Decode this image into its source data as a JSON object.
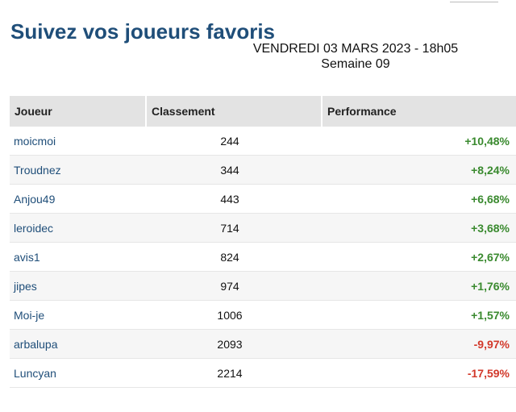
{
  "header": {
    "title": "Suivez vos joueurs favoris",
    "date_line": "VENDREDI 03 MARS 2023 - 18h05",
    "week_line": "Semaine 09"
  },
  "table": {
    "columns": [
      "Joueur",
      "Classement",
      "Performance"
    ],
    "rows": [
      {
        "player": "moicmoi",
        "rank": "244",
        "performance": "+10,48%",
        "trend": "up"
      },
      {
        "player": "Troudnez",
        "rank": "344",
        "performance": "+8,24%",
        "trend": "up"
      },
      {
        "player": "Anjou49",
        "rank": "443",
        "performance": "+6,68%",
        "trend": "up"
      },
      {
        "player": "leroidec",
        "rank": "714",
        "performance": "+3,68%",
        "trend": "up"
      },
      {
        "player": "avis1",
        "rank": "824",
        "performance": "+2,67%",
        "trend": "up"
      },
      {
        "player": "jipes",
        "rank": "974",
        "performance": "+1,76%",
        "trend": "up"
      },
      {
        "player": "Moi-je",
        "rank": "1006",
        "performance": "+1,57%",
        "trend": "up"
      },
      {
        "player": "arbalupa",
        "rank": "2093",
        "performance": "-9,97%",
        "trend": "down"
      },
      {
        "player": "Luncyan",
        "rank": "2214",
        "performance": "-17,59%",
        "trend": "down"
      }
    ]
  },
  "colors": {
    "positive": "#3a8a2f",
    "negative": "#d2392b",
    "title": "#1f4e79"
  }
}
